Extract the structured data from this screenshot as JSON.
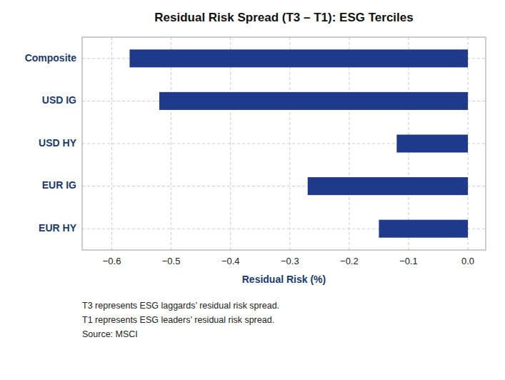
{
  "chart_data": {
    "type": "bar",
    "orientation": "horizontal",
    "title": "Residual Risk Spread (T3 – T1): ESG Terciles",
    "categories": [
      "EUR HY",
      "EUR IG",
      "USD HY",
      "USD IG",
      "Composite"
    ],
    "values": [
      -0.15,
      -0.27,
      -0.12,
      -0.52,
      -0.57
    ],
    "color": "#1F3A8A",
    "xlim": [
      -0.65,
      0.03
    ],
    "xticks": [
      {
        "value": -0.6,
        "label": "−0.6"
      },
      {
        "value": -0.5,
        "label": "−0.5"
      },
      {
        "value": -0.4,
        "label": "−0.4"
      },
      {
        "value": -0.3,
        "label": "−0.3"
      },
      {
        "value": -0.2,
        "label": "−0.2"
      },
      {
        "value": -0.1,
        "label": "−0.1"
      },
      {
        "value": 0.0,
        "label": "0.0"
      }
    ],
    "xlabel": "Residual Risk (%)",
    "annotation": "T3 represents ESG laggards’ residual risk spread.\nT1 represents ESG leaders’ residual risk spread.\nSource: MSCI",
    "grid": true
  }
}
